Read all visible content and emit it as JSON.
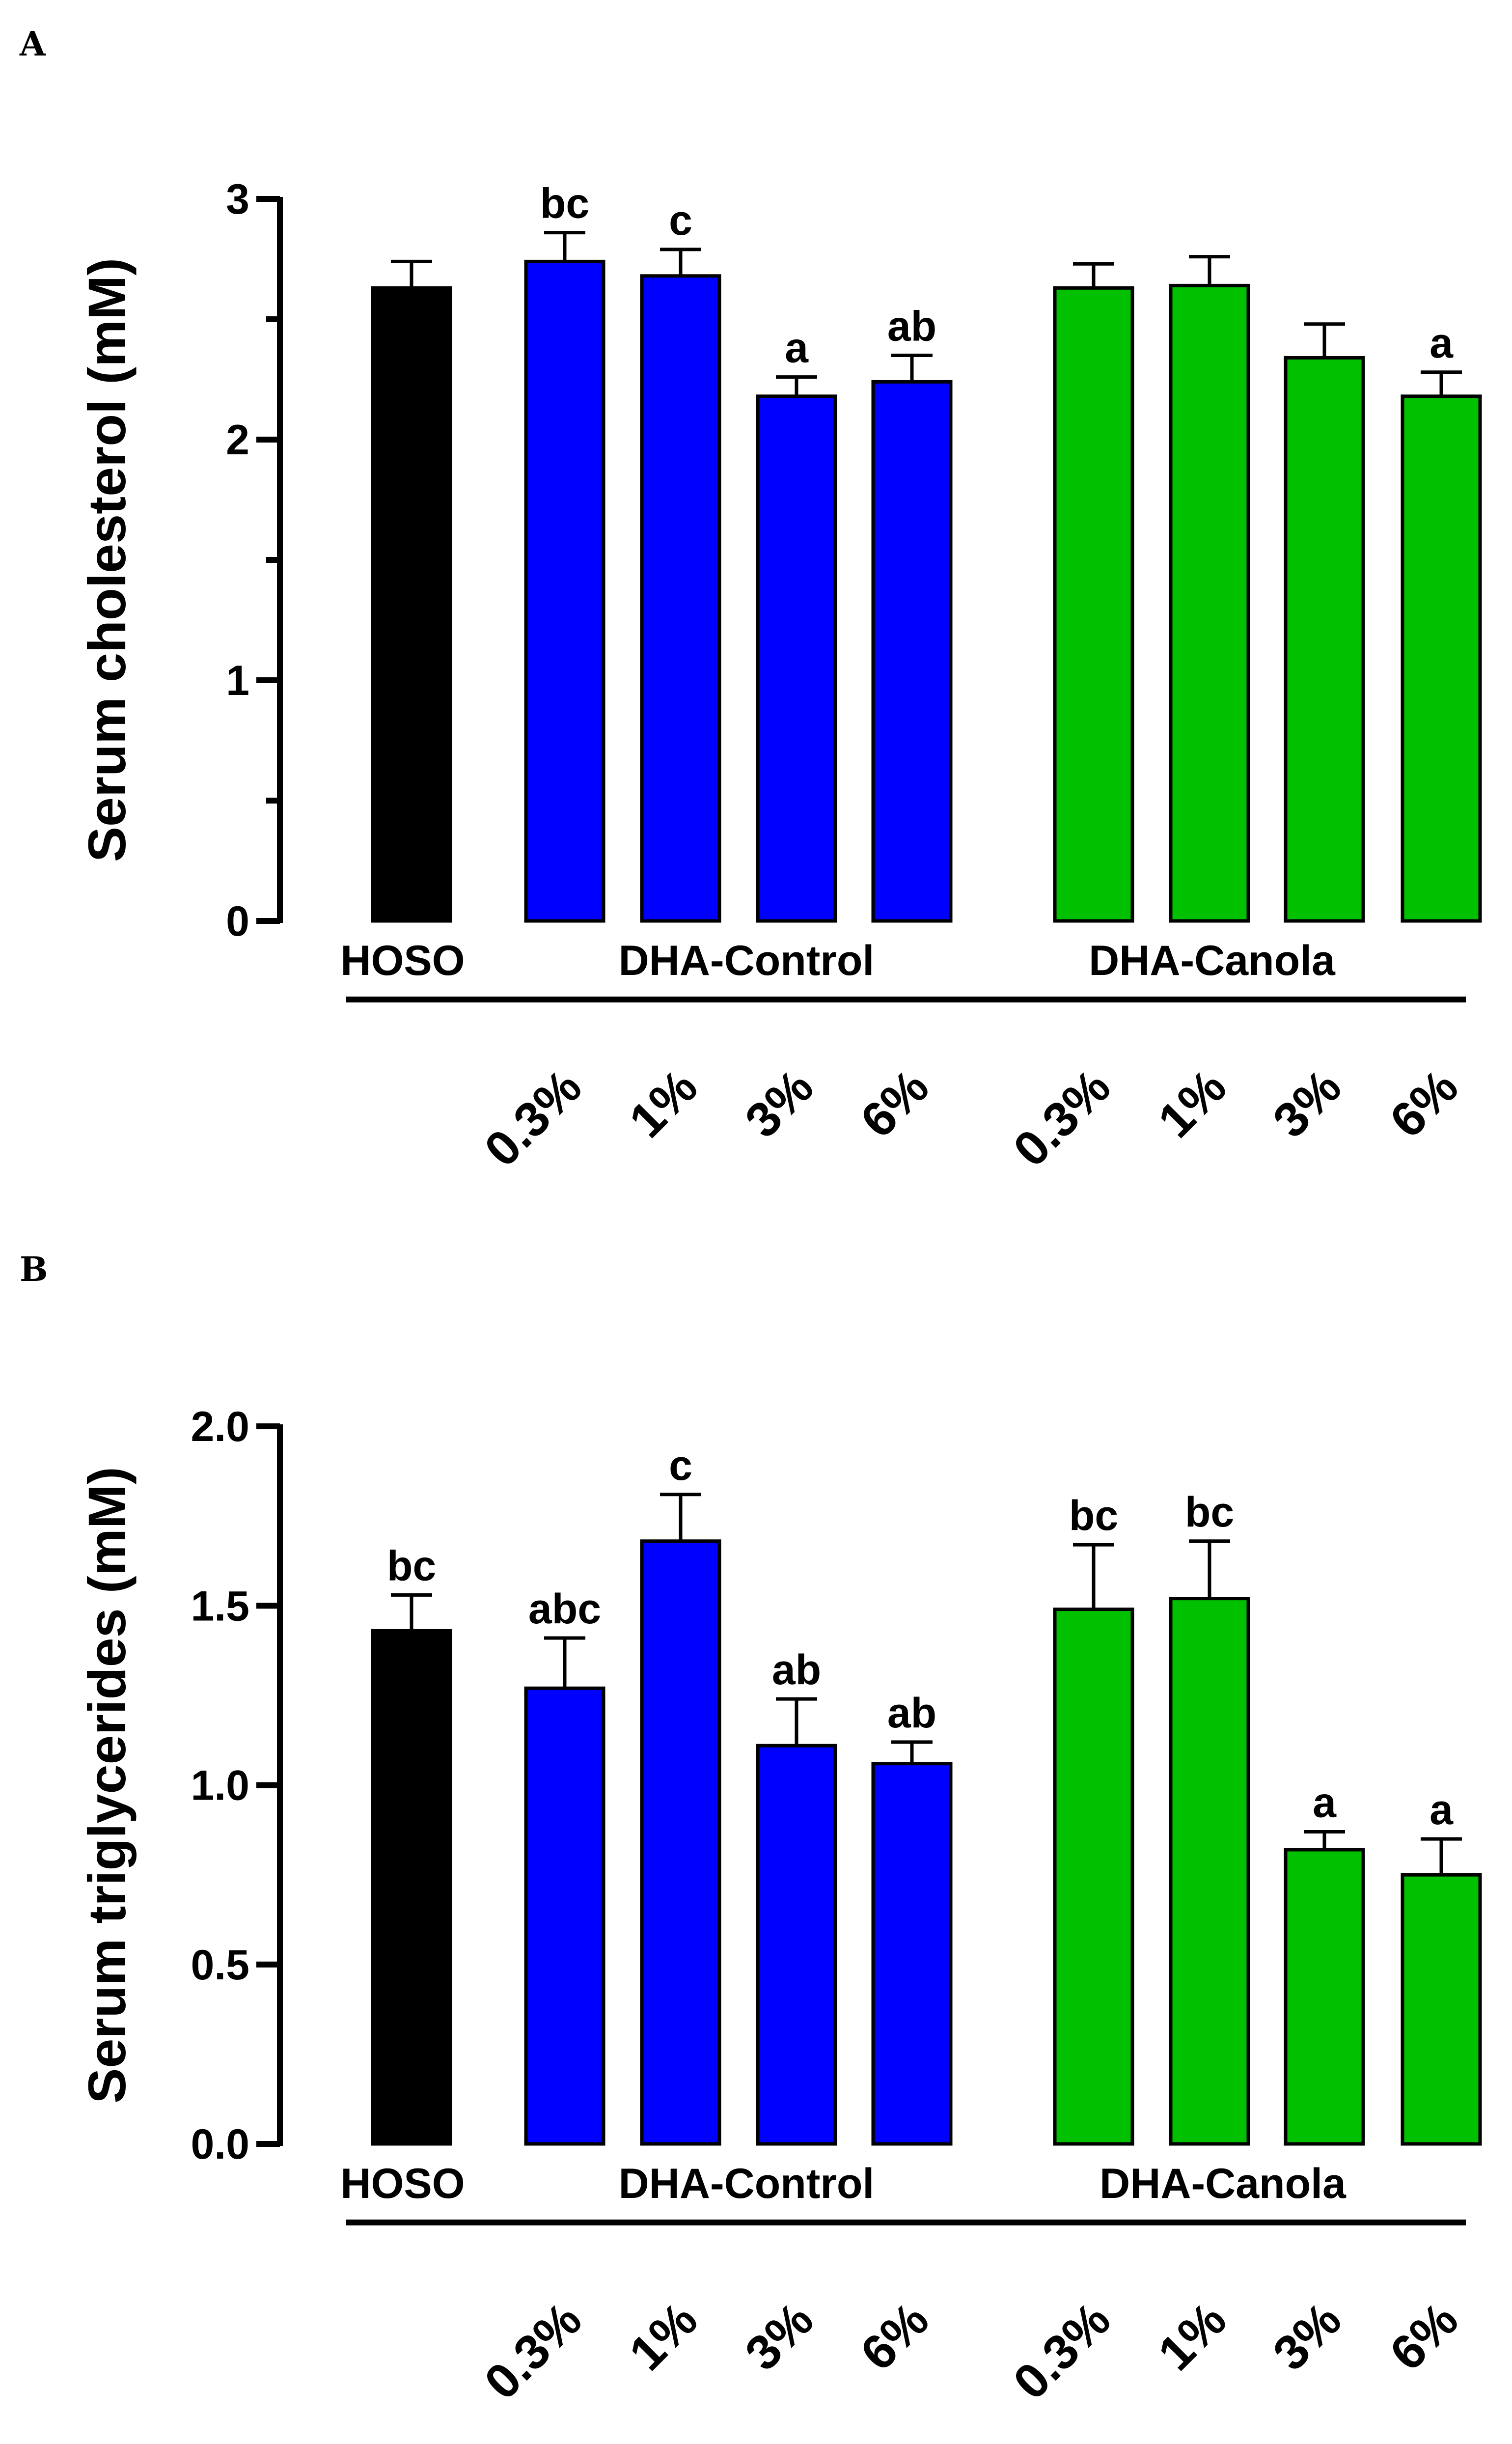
{
  "panels": [
    {
      "letter": "A"
    },
    {
      "letter": "B"
    }
  ],
  "chart_data": [
    {
      "type": "bar",
      "panel": "A",
      "ylabel": "Serum cholesterol (mM)",
      "ylim": [
        0,
        3
      ],
      "yticks": [
        "0",
        "1",
        "2",
        "3"
      ],
      "categories": [
        "HOSO",
        "0.3%",
        "1%",
        "3%",
        "6%",
        "0.3%",
        "1%",
        "3%",
        "6%"
      ],
      "groups": [
        "HOSO",
        "DHA-Control",
        "DHA-Canola"
      ],
      "values": [
        2.63,
        2.74,
        2.68,
        2.18,
        2.24,
        2.63,
        2.64,
        2.34,
        2.18
      ],
      "errors": [
        0.11,
        0.12,
        0.11,
        0.08,
        0.11,
        0.1,
        0.12,
        0.14,
        0.1
      ],
      "labels": [
        "",
        "bc",
        "c",
        "a",
        "ab",
        "",
        "",
        "",
        "a"
      ],
      "colors": [
        "#000000",
        "#0000ff",
        "#0000ff",
        "#0000ff",
        "#0000ff",
        "#00c000",
        "#00c000",
        "#00c000",
        "#00c000"
      ]
    },
    {
      "type": "bar",
      "panel": "B",
      "ylabel": "Serum triglycerides (mM)",
      "ylim": [
        0,
        2
      ],
      "yticks": [
        "0.0",
        "0.5",
        "1.0",
        "1.5",
        "2.0"
      ],
      "categories": [
        "HOSO",
        "0.3%",
        "1%",
        "3%",
        "6%",
        "0.3%",
        "1%",
        "3%",
        "6%"
      ],
      "groups": [
        "HOSO",
        "DHA-Control",
        "DHA-Canola"
      ],
      "values": [
        1.43,
        1.27,
        1.68,
        1.11,
        1.06,
        1.49,
        1.52,
        0.82,
        0.75
      ],
      "errors": [
        0.1,
        0.14,
        0.13,
        0.13,
        0.06,
        0.18,
        0.16,
        0.05,
        0.1
      ],
      "labels": [
        "bc",
        "abc",
        "c",
        "ab",
        "ab",
        "bc",
        "bc",
        "a",
        "a"
      ],
      "colors": [
        "#000000",
        "#0000ff",
        "#0000ff",
        "#0000ff",
        "#0000ff",
        "#00c000",
        "#00c000",
        "#00c000",
        "#00c000"
      ]
    }
  ]
}
